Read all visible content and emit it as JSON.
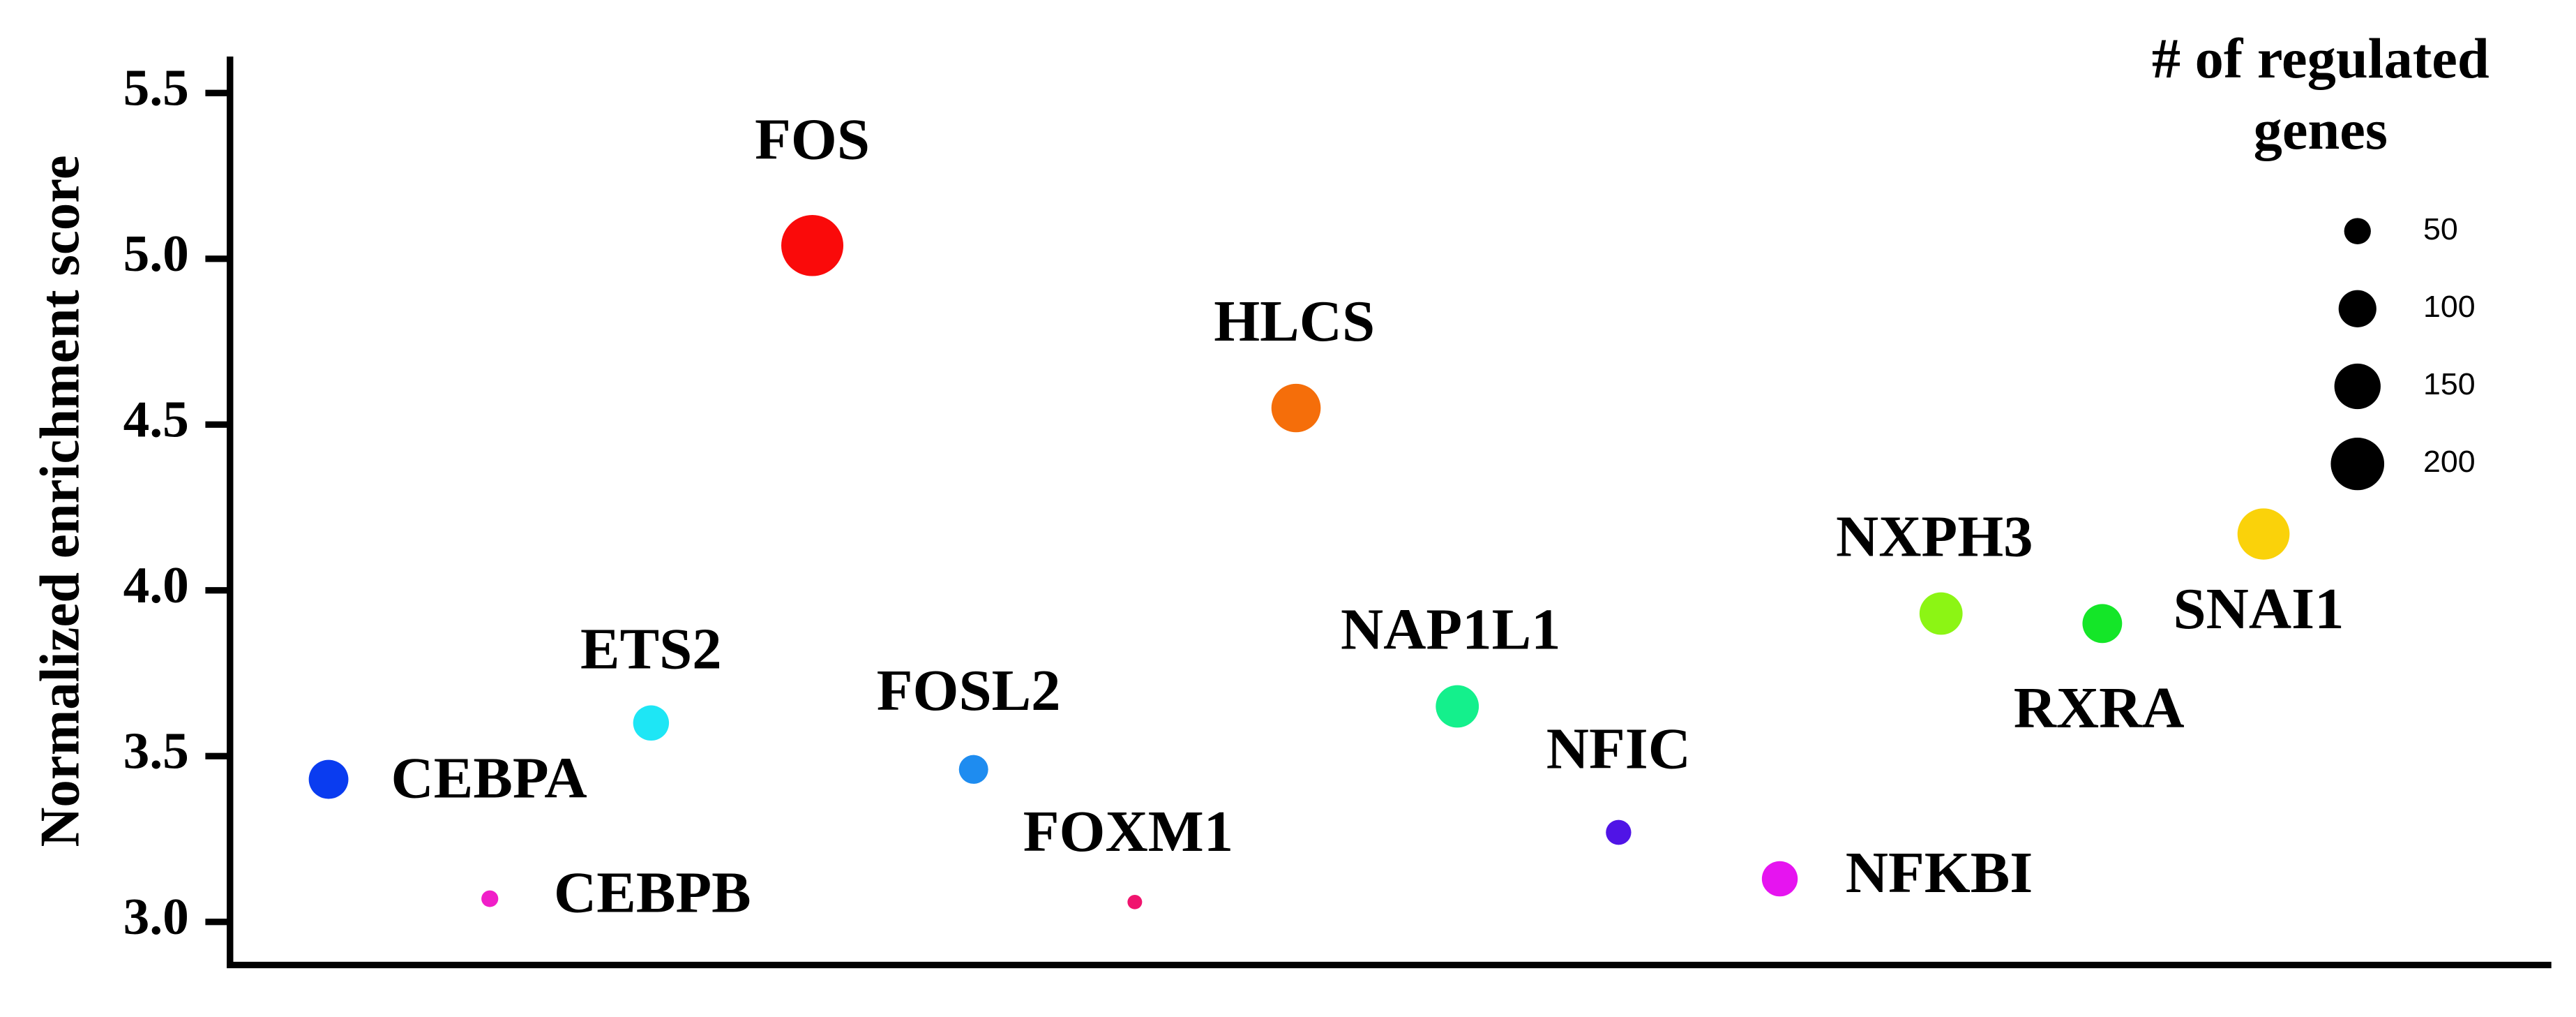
{
  "chart_data": {
    "type": "bubble",
    "y_label": "Normalized enrichment score",
    "categories": [
      "CEBPA",
      "CEBPB",
      "ETS2",
      "FOS",
      "FOSL2",
      "FOXM1",
      "HLCS",
      "NAP1L1",
      "NFIC",
      "NFKBI",
      "NXPH3",
      "RXRA",
      "SNAI1"
    ],
    "values": [
      3.43,
      3.07,
      3.6,
      5.04,
      3.46,
      3.06,
      4.55,
      3.65,
      3.27,
      3.13,
      3.93,
      3.9,
      4.17
    ],
    "sizes": [
      110,
      20,
      90,
      270,
      60,
      15,
      170,
      130,
      45,
      90,
      130,
      110,
      190
    ],
    "colors": [
      "#0a3cf0",
      "#f01ec8",
      "#1ee6f5",
      "#fa0a0a",
      "#1e8cf0",
      "#f0146e",
      "#f56e0a",
      "#14f08c",
      "#5014e6",
      "#e614f0",
      "#8cf514",
      "#14e628",
      "#fad20a"
    ],
    "ylim": [
      2.87,
      5.61
    ],
    "yticks": [
      {
        "value": 3,
        "label": "3.0"
      },
      3.5,
      {
        "value": 4,
        "label": "4.0"
      },
      4.5,
      {
        "value": 5,
        "label": "5.0"
      },
      5.5
    ],
    "size_legend": {
      "title": "# of regulated genes",
      "values": [
        50,
        100,
        150,
        200
      ],
      "color": "#000000"
    }
  }
}
